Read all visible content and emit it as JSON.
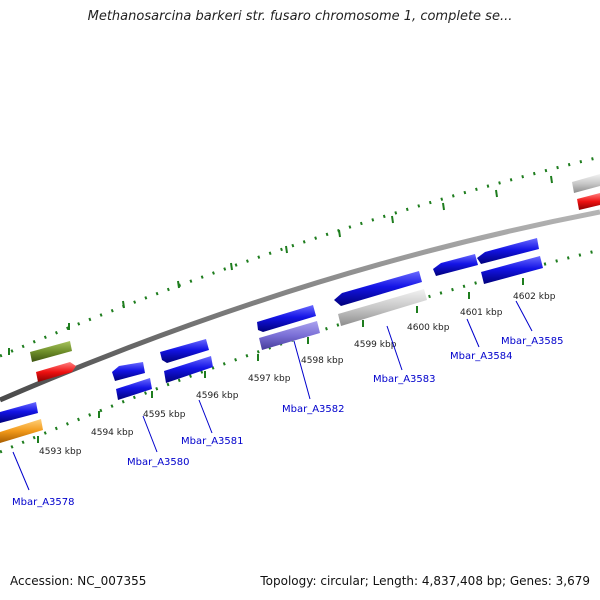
{
  "title": "Methanosarcina barkeri str. fusaro chromosome 1, complete se...",
  "footer": {
    "accession": "Accession: NC_007355",
    "summary": "Topology: circular; Length: 4,837,408 bp; Genes: 3,679"
  },
  "ticks": [
    "4593 kbp",
    "4594 kbp",
    "4595 kbp",
    "4596 kbp",
    "4597 kbp",
    "4598 kbp",
    "4599 kbp",
    "4600 kbp",
    "4601 kbp",
    "4602 kbp"
  ],
  "genes": [
    "Mbar_A3578",
    "Mbar_A3580",
    "Mbar_A3581",
    "Mbar_A3582",
    "Mbar_A3583",
    "Mbar_A3584",
    "Mbar_A3585"
  ],
  "colors": {
    "cds_blue": "#1414e6",
    "gray": "#c8c8c8",
    "purple": "#7a6fd6",
    "orange": "#f29a1a",
    "red": "#ee1111",
    "olive": "#6f8f2a",
    "backbone": "#7d7d7d",
    "tick": "#1e7d1e"
  }
}
